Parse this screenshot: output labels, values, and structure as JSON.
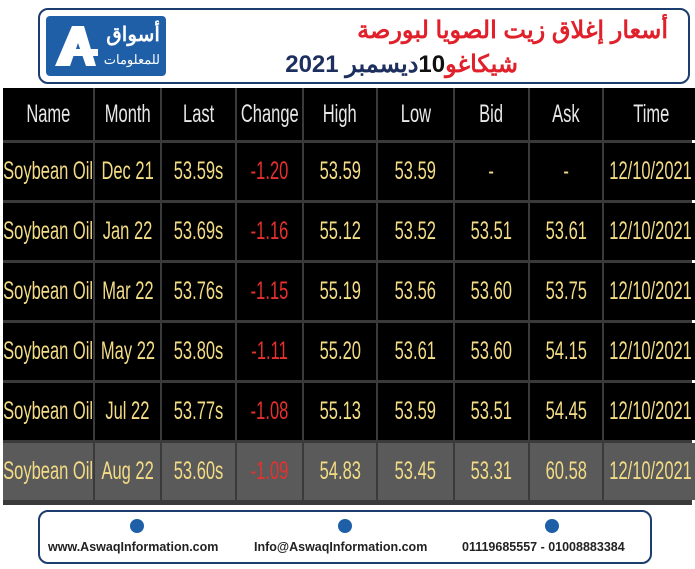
{
  "header": {
    "logo_text_1": "أسواق",
    "logo_text_2": "للمعلومات",
    "title_line1": "أسعار إغلاق زيت الصويا لبورصة",
    "title_line2": [
      "شيكاغو",
      "10",
      "ديسمبر 2021"
    ]
  },
  "table": {
    "header": [
      "Name",
      "Month",
      "Last",
      "Change",
      "High",
      "Low",
      "Bid",
      "Ask",
      "Time"
    ],
    "rows": [
      [
        "Soybean Oil",
        "Dec 21",
        "53.59s",
        "-1.20",
        "53.59",
        "53.59",
        "-",
        "-",
        "12/10/2021"
      ],
      [
        "Soybean Oil",
        "Jan 22",
        "53.69s",
        "-1.16",
        "55.12",
        "53.52",
        "53.51",
        "53.61",
        "12/10/2021"
      ],
      [
        "Soybean Oil",
        "Mar 22",
        "53.76s",
        "-1.15",
        "55.19",
        "53.56",
        "53.60",
        "53.75",
        "12/10/2021"
      ],
      [
        "Soybean Oil",
        "May 22",
        "53.80s",
        "-1.11",
        "55.20",
        "53.61",
        "53.60",
        "54.15",
        "12/10/2021"
      ],
      [
        "Soybean Oil",
        "Jul 22",
        "53.77s",
        "-1.08",
        "55.13",
        "53.59",
        "53.51",
        "54.45",
        "12/10/2021"
      ],
      [
        "Soybean Oil",
        "Aug 22",
        "53.60s",
        "-1.09",
        "54.83",
        "53.45",
        "53.31",
        "60.58",
        "12/10/2021"
      ]
    ]
  },
  "footer": {
    "website": "www.AswaqInformation.com",
    "email": "Info@AswaqInformation.com",
    "phone": "01119685557 - 01008883384"
  }
}
